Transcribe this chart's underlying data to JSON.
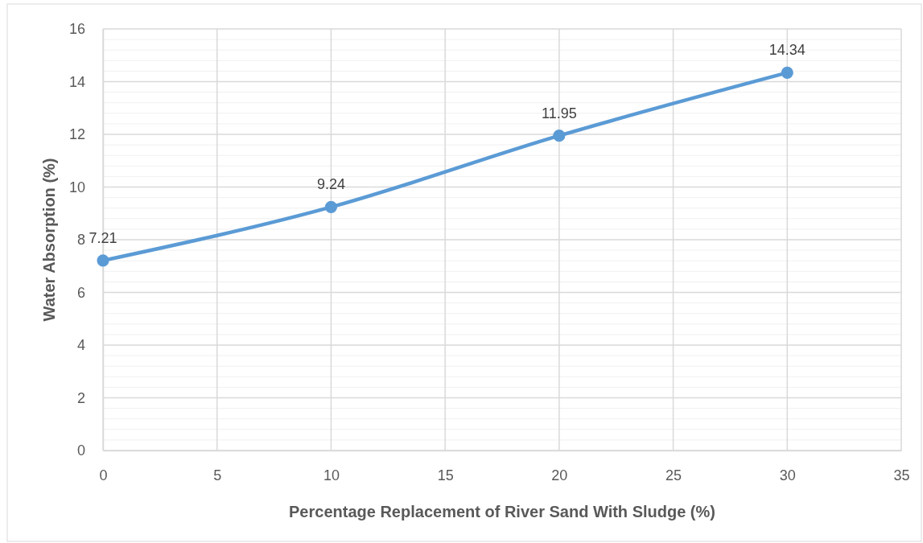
{
  "chart_data": {
    "type": "line",
    "xlabel": "Percentage Replacement of River Sand With Sludge (%)",
    "ylabel": "Water Absorption (%)",
    "x": [
      0,
      10,
      20,
      30
    ],
    "series": [
      {
        "color": "#5b9bd5",
        "values": [
          7.21,
          9.24,
          11.95,
          14.34
        ]
      }
    ],
    "xlim": [
      0,
      35
    ],
    "xticks": [
      0,
      5,
      10,
      15,
      20,
      25,
      30,
      35
    ],
    "ylim": [
      0,
      16
    ],
    "yticks": [
      0,
      2,
      4,
      6,
      8,
      10,
      12,
      14,
      16
    ],
    "grid": true,
    "marker": "circle",
    "line_style": "solid",
    "data_labels": true
  }
}
